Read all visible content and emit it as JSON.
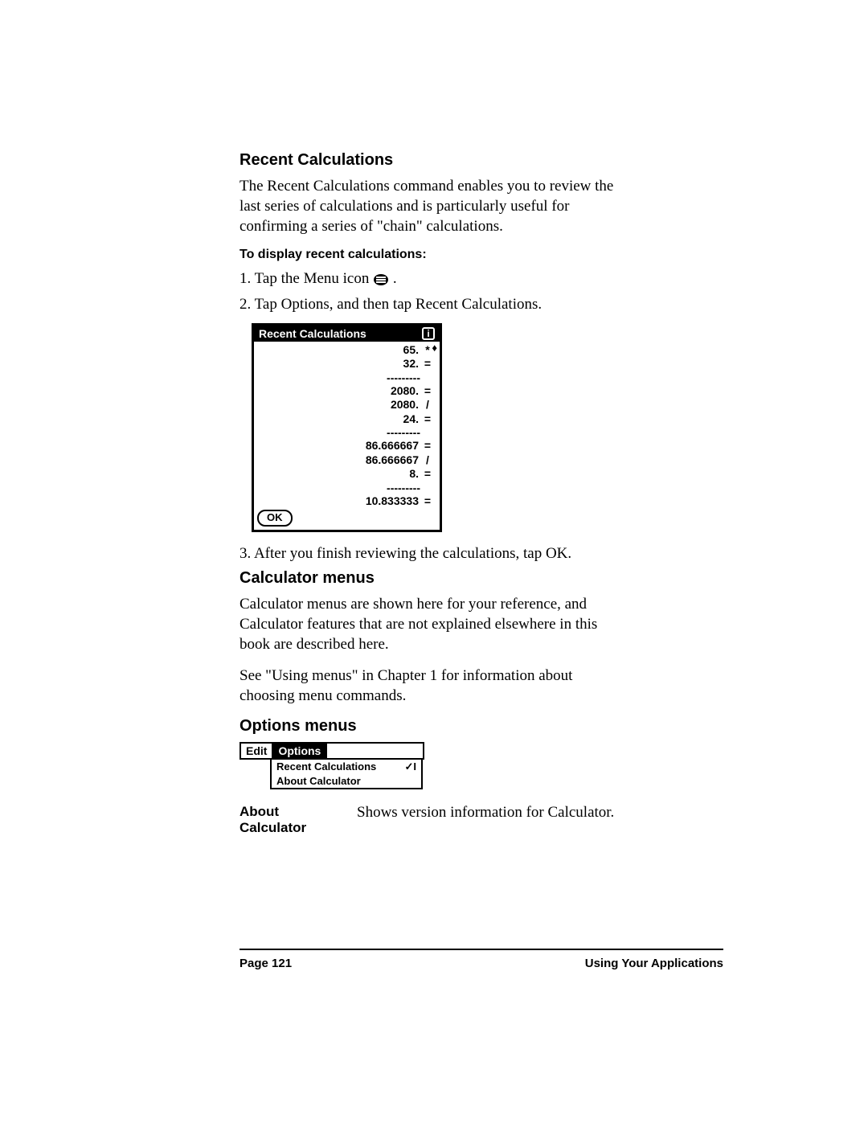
{
  "sections": {
    "recent_calc": {
      "heading": "Recent Calculations",
      "intro": "The Recent Calculations command enables you to review the last series of calculations and is particularly useful for confirming a series of \"chain\" calculations.",
      "sub": "To display recent calculations:",
      "step1_pre": "1.  Tap the Menu icon ",
      "step1_post": " .",
      "step2": "2.  Tap Options, and then tap Recent Calculations.",
      "step3": "3.  After you finish reviewing the calculations, tap OK."
    },
    "calc_menus": {
      "heading": "Calculator menus",
      "para1": "Calculator menus are shown here for your reference, and Calculator features that are not explained elsewhere in this book are described here.",
      "para2": "See \"Using menus\" in Chapter 1 for information about choosing menu commands."
    },
    "options_menus": {
      "heading": "Options menus",
      "about_label": "About Calculator",
      "about_desc": "Shows version information for Calculator."
    }
  },
  "rc_screen": {
    "title": "Recent Calculations",
    "info_icon_label": "i",
    "rows": [
      {
        "value": "65.",
        "op": "*"
      },
      {
        "value": "32.",
        "op": "="
      },
      {
        "divider": "---------"
      },
      {
        "value": "2080.",
        "op": "="
      },
      {
        "value": "2080.",
        "op": "/"
      },
      {
        "value": "24.",
        "op": "="
      },
      {
        "divider": "---------"
      },
      {
        "value": "86.666667",
        "op": "="
      },
      {
        "value": "86.666667",
        "op": "/"
      },
      {
        "value": "8.",
        "op": "="
      },
      {
        "divider": "---------"
      },
      {
        "value": "10.833333",
        "op": "="
      }
    ],
    "ok_label": "OK",
    "scroll_marker": "♦"
  },
  "om_screen": {
    "edit_label": "Edit",
    "options_label": "Options",
    "items": [
      {
        "label": "Recent Calculations",
        "shortcut": "✓I"
      },
      {
        "label": "About Calculator",
        "shortcut": ""
      }
    ]
  },
  "footer": {
    "page": "Page 121",
    "chapter": "Using Your Applications"
  }
}
